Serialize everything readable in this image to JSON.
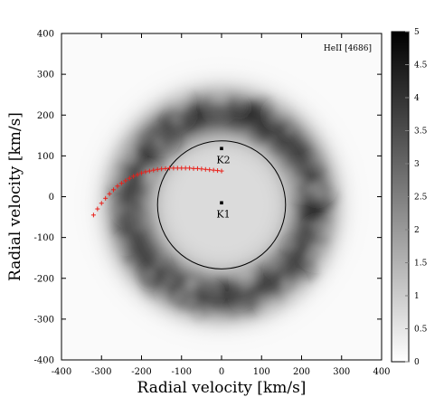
{
  "chart_data": {
    "type": "heatmap",
    "title": "",
    "annotation": "HeII [4686]",
    "xlabel": "Radial velocity [km/s]",
    "ylabel": "Radial velocity [km/s]",
    "xlim": [
      -400,
      400
    ],
    "ylim": [
      -400,
      400
    ],
    "x_ticks": [
      -400,
      -300,
      -200,
      -100,
      0,
      100,
      200,
      300,
      400
    ],
    "y_ticks": [
      -400,
      -300,
      -200,
      -100,
      0,
      100,
      200,
      300,
      400
    ],
    "colorbar": {
      "range": [
        0,
        5
      ],
      "ticks": [
        "0",
        "0.5",
        "1",
        "1.5",
        "2",
        "2.5",
        "3",
        "3.5",
        "4",
        "4.5",
        "5"
      ],
      "colormap": "grayscale, white (0) to black (5)"
    },
    "ring": {
      "center_x": 0,
      "center_y": -20,
      "peak_radius": 230,
      "width": 55,
      "peak_value": 3.6,
      "background_value": 0.5,
      "inner_value": 0.7,
      "outer_value": 0.1
    },
    "reference_circle": {
      "center_x": 0,
      "center_y": -20,
      "radius": 160,
      "color": "#000000"
    },
    "points": [
      {
        "label": "K2",
        "x": 0,
        "y": 118
      },
      {
        "label": "K1",
        "x": 0,
        "y": -15
      }
    ],
    "stream_trajectory": {
      "color": "#e8201a",
      "marker": "+",
      "x": [
        -320,
        -310,
        -300,
        -290,
        -280,
        -270,
        -260,
        -250,
        -240,
        -230,
        -220,
        -210,
        -200,
        -190,
        -180,
        -170,
        -160,
        -150,
        -140,
        -130,
        -120,
        -110,
        -100,
        -90,
        -80,
        -70,
        -60,
        -50,
        -40,
        -30,
        -20,
        -10,
        0
      ],
      "y": [
        -45,
        -30,
        -16,
        -4,
        7,
        17,
        26,
        33,
        39,
        45,
        50,
        54,
        58,
        61,
        63,
        65,
        67,
        68,
        69,
        70,
        70,
        70,
        70,
        70,
        70,
        69,
        69,
        68,
        67,
        66,
        65,
        64,
        63
      ]
    }
  }
}
